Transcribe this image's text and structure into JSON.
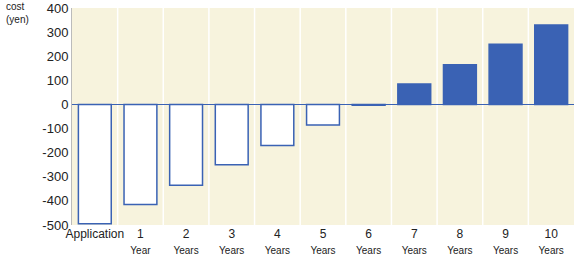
{
  "chart_data": {
    "type": "bar",
    "y_label": "cost (yen)",
    "categories": [
      "Application",
      "1 Year",
      "2 Years",
      "3 Years",
      "4 Years",
      "5 Years",
      "6 Years",
      "7 Years",
      "8 Years",
      "9 Years",
      "10 Years"
    ],
    "values": [
      -495,
      -415,
      -335,
      -250,
      -170,
      -85,
      -3,
      85,
      165,
      250,
      330
    ],
    "color": "#3a62b4",
    "colors": [
      "#ffffff",
      "#ffffff",
      "#ffffff",
      "#ffffff",
      "#ffffff",
      "#ffffff",
      "#ffffff",
      "#3a62b4",
      "#3a62b4",
      "#3a62b4",
      "#3a62b4"
    ],
    "ylim": [
      -500,
      400
    ],
    "yticks": [
      -500,
      -400,
      -300,
      -200,
      -100,
      0,
      100,
      200,
      300,
      400
    ],
    "grid": false
  }
}
